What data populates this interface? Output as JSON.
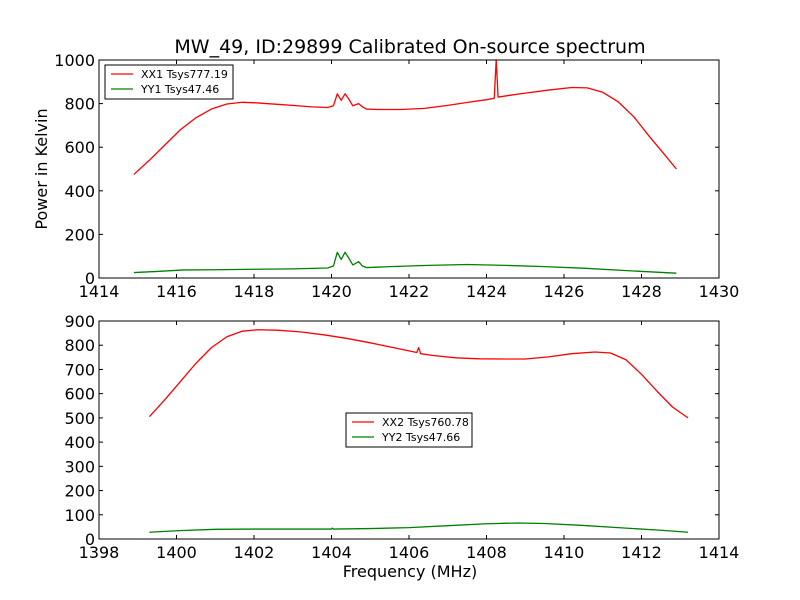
{
  "chart_data": [
    {
      "type": "line",
      "title": "MW_49, ID:29899 Calibrated On-source spectrum",
      "xlabel": "",
      "ylabel": "Power in Kelvin",
      "xlim": [
        1414,
        1430
      ],
      "ylim": [
        0,
        1000
      ],
      "xticks": [
        1414,
        1416,
        1418,
        1420,
        1422,
        1424,
        1426,
        1428,
        1430
      ],
      "yticks": [
        0,
        200,
        400,
        600,
        800,
        1000
      ],
      "grid": false,
      "legend_position": "top-left",
      "series": [
        {
          "name": "XX1 Tsys777.19",
          "color": "#ff0000",
          "points": [
            [
              1414.9,
              475
            ],
            [
              1415.3,
              540
            ],
            [
              1415.7,
              610
            ],
            [
              1416.1,
              680
            ],
            [
              1416.5,
              735
            ],
            [
              1416.9,
              775
            ],
            [
              1417.3,
              798
            ],
            [
              1417.7,
              806
            ],
            [
              1418.1,
              803
            ],
            [
              1418.5,
              798
            ],
            [
              1419.0,
              792
            ],
            [
              1419.5,
              785
            ],
            [
              1419.9,
              782
            ],
            [
              1420.05,
              790
            ],
            [
              1420.15,
              845
            ],
            [
              1420.25,
              815
            ],
            [
              1420.35,
              845
            ],
            [
              1420.45,
              820
            ],
            [
              1420.55,
              790
            ],
            [
              1420.7,
              800
            ],
            [
              1420.8,
              785
            ],
            [
              1420.9,
              775
            ],
            [
              1421.2,
              773
            ],
            [
              1421.8,
              773
            ],
            [
              1422.4,
              778
            ],
            [
              1423.0,
              792
            ],
            [
              1423.6,
              808
            ],
            [
              1424.0,
              818
            ],
            [
              1424.2,
              824
            ],
            [
              1424.25,
              1000
            ],
            [
              1424.3,
              830
            ],
            [
              1424.6,
              838
            ],
            [
              1425.0,
              848
            ],
            [
              1425.6,
              862
            ],
            [
              1426.2,
              874
            ],
            [
              1426.6,
              872
            ],
            [
              1427.0,
              852
            ],
            [
              1427.4,
              808
            ],
            [
              1427.8,
              740
            ],
            [
              1428.2,
              650
            ],
            [
              1428.6,
              565
            ],
            [
              1428.9,
              500
            ]
          ]
        },
        {
          "name": "YY1 Tsys47.46",
          "color": "#008000",
          "points": [
            [
              1414.9,
              25
            ],
            [
              1415.5,
              30
            ],
            [
              1416.2,
              37
            ],
            [
              1417.0,
              38
            ],
            [
              1418.0,
              40
            ],
            [
              1419.0,
              42
            ],
            [
              1419.9,
              46
            ],
            [
              1420.05,
              55
            ],
            [
              1420.15,
              118
            ],
            [
              1420.25,
              85
            ],
            [
              1420.35,
              118
            ],
            [
              1420.45,
              90
            ],
            [
              1420.55,
              60
            ],
            [
              1420.7,
              75
            ],
            [
              1420.8,
              55
            ],
            [
              1420.9,
              48
            ],
            [
              1421.5,
              52
            ],
            [
              1422.5,
              58
            ],
            [
              1423.5,
              62
            ],
            [
              1424.5,
              58
            ],
            [
              1425.5,
              52
            ],
            [
              1426.5,
              45
            ],
            [
              1427.5,
              35
            ],
            [
              1428.9,
              22
            ]
          ]
        }
      ]
    },
    {
      "type": "line",
      "title": "",
      "xlabel": "Frequency (MHz)",
      "ylabel": "",
      "xlim": [
        1398,
        1414
      ],
      "ylim": [
        0,
        900
      ],
      "xticks": [
        1398,
        1400,
        1402,
        1404,
        1406,
        1408,
        1410,
        1412,
        1414
      ],
      "yticks": [
        0,
        100,
        200,
        300,
        400,
        500,
        600,
        700,
        800,
        900
      ],
      "grid": false,
      "legend_position": "center",
      "series": [
        {
          "name": "XX2 Tsys760.78",
          "color": "#ff0000",
          "points": [
            [
              1399.3,
              505
            ],
            [
              1399.7,
              575
            ],
            [
              1400.1,
              650
            ],
            [
              1400.5,
              725
            ],
            [
              1400.9,
              790
            ],
            [
              1401.3,
              835
            ],
            [
              1401.7,
              858
            ],
            [
              1402.1,
              864
            ],
            [
              1402.6,
              862
            ],
            [
              1403.2,
              855
            ],
            [
              1403.8,
              843
            ],
            [
              1404.4,
              828
            ],
            [
              1405.0,
              810
            ],
            [
              1405.6,
              790
            ],
            [
              1406.2,
              770
            ],
            [
              1406.25,
              790
            ],
            [
              1406.3,
              765
            ],
            [
              1406.6,
              758
            ],
            [
              1407.2,
              748
            ],
            [
              1407.8,
              744
            ],
            [
              1408.4,
              743
            ],
            [
              1409.0,
              743
            ],
            [
              1409.6,
              752
            ],
            [
              1410.2,
              765
            ],
            [
              1410.8,
              772
            ],
            [
              1411.2,
              768
            ],
            [
              1411.6,
              740
            ],
            [
              1412.0,
              680
            ],
            [
              1412.4,
              610
            ],
            [
              1412.8,
              545
            ],
            [
              1413.2,
              500
            ]
          ]
        },
        {
          "name": "YY2 Tsys47.66",
          "color": "#008000",
          "points": [
            [
              1399.3,
              28
            ],
            [
              1400.0,
              34
            ],
            [
              1401.0,
              40
            ],
            [
              1402.0,
              41
            ],
            [
              1403.0,
              41
            ],
            [
              1404.0,
              41
            ],
            [
              1404.02,
              45
            ],
            [
              1404.05,
              41
            ],
            [
              1405.0,
              43
            ],
            [
              1406.0,
              47
            ],
            [
              1407.0,
              55
            ],
            [
              1408.0,
              63
            ],
            [
              1408.8,
              66
            ],
            [
              1409.5,
              64
            ],
            [
              1410.5,
              56
            ],
            [
              1411.5,
              46
            ],
            [
              1412.5,
              36
            ],
            [
              1413.2,
              28
            ]
          ]
        }
      ]
    }
  ]
}
